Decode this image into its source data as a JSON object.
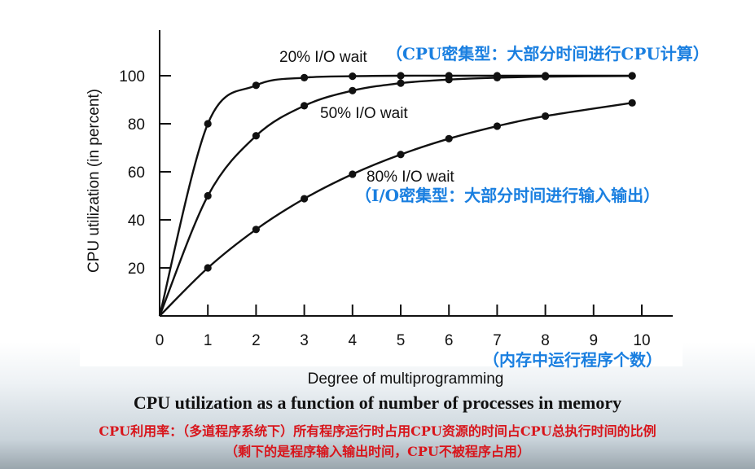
{
  "chart_data": {
    "type": "line",
    "xlabel": "Degree of multiprogramming",
    "ylabel": "CPU utilization (in percent)",
    "xlim": [
      0,
      10
    ],
    "ylim": [
      0,
      100
    ],
    "x_ticks": [
      0,
      1,
      2,
      3,
      4,
      5,
      6,
      7,
      8,
      9,
      10
    ],
    "y_ticks": [
      20,
      40,
      60,
      80,
      100
    ],
    "grid": false,
    "series": [
      {
        "name": "20% I/O wait",
        "x": [
          0,
          1,
          2,
          3,
          4,
          5,
          6,
          7,
          8,
          9.8
        ],
        "y": [
          0,
          80,
          96,
          99.2,
          99.8,
          100,
          100,
          100,
          100,
          100
        ]
      },
      {
        "name": "50% I/O wait",
        "x": [
          0,
          1,
          2,
          3,
          4,
          5,
          6,
          7,
          8,
          9.8
        ],
        "y": [
          0,
          50,
          75,
          87.5,
          93.8,
          96.9,
          98.4,
          99.2,
          99.6,
          99.9
        ]
      },
      {
        "name": "80% I/O wait",
        "x": [
          0,
          1,
          2,
          3,
          4,
          5,
          6,
          7,
          8,
          9.8
        ],
        "y": [
          0,
          20,
          36,
          48.8,
          59,
          67.2,
          73.8,
          79,
          83.2,
          88.7
        ]
      }
    ]
  },
  "annotations": {
    "cpu_bound": "（CPU密集型：大部分时间进行CPU计算）",
    "io_bound": "（I/O密集型：大部分时间进行输入输出）",
    "memory_processes": "（内存中运行程序个数）"
  },
  "caption": "CPU utilization as a function of number of processes in memory",
  "notes": {
    "line1": "CPU利用率：（多道程序系统下）所有程序运行时占用CPU资源的时间占CPU总执行时间的比例",
    "line2": "（剩下的是程序输入输出时间，CPU不被程序占用）"
  }
}
